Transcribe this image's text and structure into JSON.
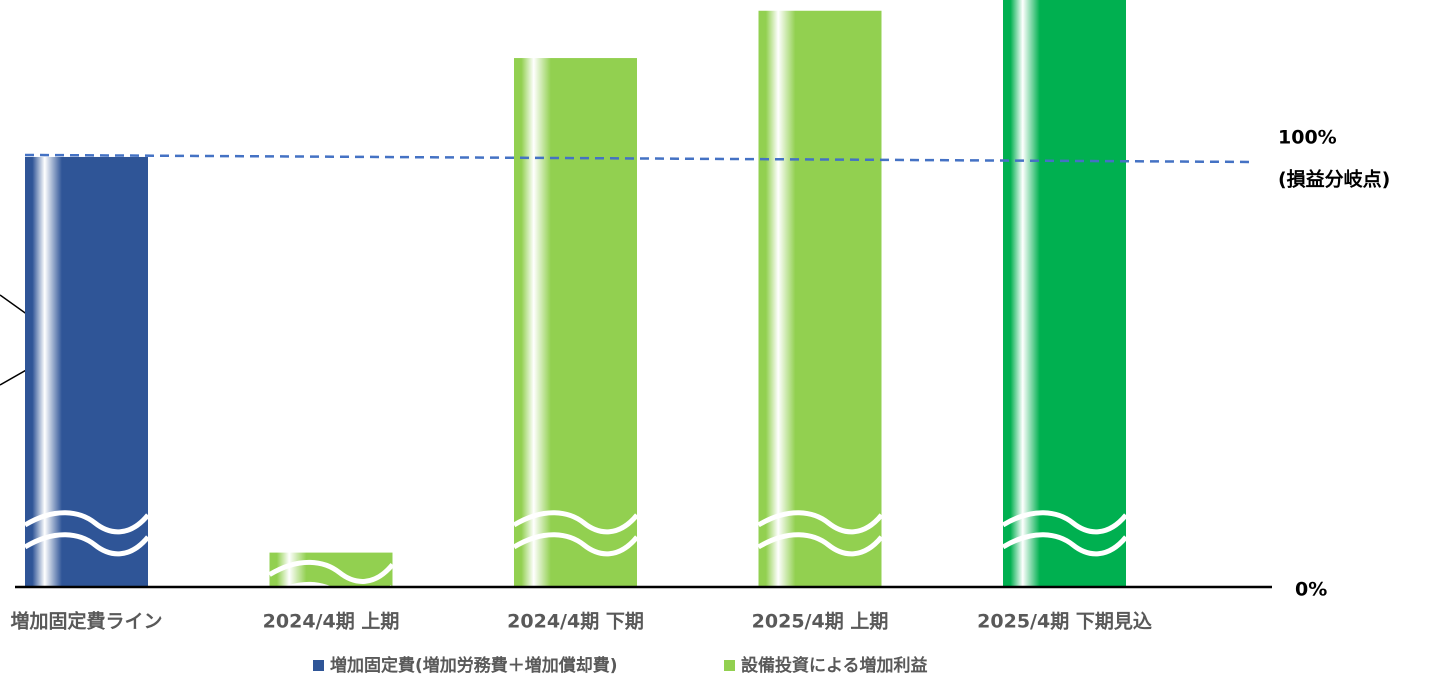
{
  "chart_data": {
    "type": "bar",
    "categories": [
      "増加固定費ライン",
      "2024/4期 上期",
      "2024/4期 下期",
      "2025/4期 上期",
      "2025/4期 下期見込"
    ],
    "series": [
      {
        "name": "増加固定費(増加労務費＋増加償却費)",
        "color": "#2f5597",
        "values": [
          100,
          null,
          null,
          null,
          null
        ]
      },
      {
        "name": "設備投資による増加利益",
        "color": "#92d050",
        "point_colors": [
          null,
          "#92d050",
          "#92d050",
          "#92d050",
          "#00b050"
        ],
        "values": [
          null,
          8,
          123,
          134,
          140
        ]
      }
    ],
    "ylim": [
      0,
      136.5
    ],
    "yticks": [
      {
        "value": 0,
        "label": "0%"
      },
      {
        "value": 100,
        "label": "100%"
      }
    ],
    "annotation": "(損益分岐点)",
    "legend": "bottom"
  }
}
